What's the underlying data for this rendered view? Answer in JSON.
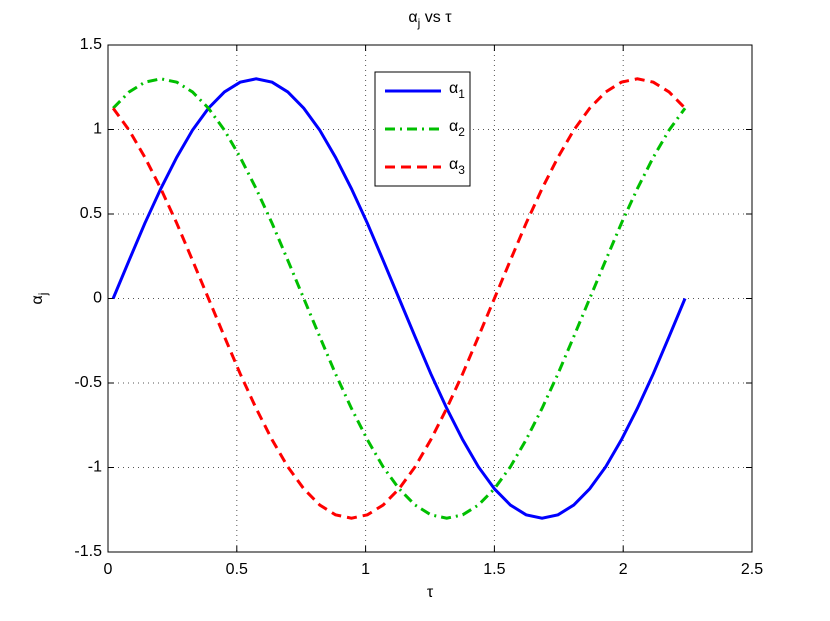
{
  "chart_data": {
    "type": "line",
    "title": "αj vs τ",
    "x_label": "τ",
    "y_label": "αj",
    "x": [
      0.02,
      0.082,
      0.143,
      0.205,
      0.267,
      0.328,
      0.39,
      0.452,
      0.513,
      0.575,
      0.637,
      0.698,
      0.76,
      0.822,
      0.883,
      0.945,
      1.007,
      1.068,
      1.13,
      1.192,
      1.253,
      1.315,
      1.377,
      1.438,
      1.5,
      1.562,
      1.623,
      1.685,
      1.747,
      1.808,
      1.87,
      1.932,
      1.993,
      2.055,
      2.117,
      2.178,
      2.24
    ],
    "series": [
      {
        "name": "α1",
        "color": "#0000ff",
        "dash": "solid",
        "values": [
          0,
          0.226,
          0.445,
          0.65,
          0.836,
          0.996,
          1.126,
          1.222,
          1.28,
          1.3,
          1.28,
          1.222,
          1.126,
          0.996,
          0.836,
          0.65,
          0.445,
          0.226,
          0,
          -0.226,
          -0.445,
          -0.65,
          -0.836,
          -0.996,
          -1.126,
          -1.222,
          -1.28,
          -1.3,
          -1.28,
          -1.222,
          -1.126,
          -0.996,
          -0.836,
          -0.65,
          -0.445,
          -0.226,
          0
        ]
      },
      {
        "name": "α2",
        "color": "#00bf00",
        "dash": "dashdot",
        "values": [
          1.126,
          1.222,
          1.28,
          1.3,
          1.28,
          1.222,
          1.126,
          0.996,
          0.836,
          0.65,
          0.445,
          0.226,
          0,
          -0.226,
          -0.445,
          -0.65,
          -0.836,
          -0.996,
          -1.126,
          -1.222,
          -1.28,
          -1.3,
          -1.28,
          -1.222,
          -1.126,
          -0.996,
          -0.836,
          -0.65,
          -0.445,
          -0.226,
          0,
          0.226,
          0.445,
          0.65,
          0.836,
          0.996,
          1.126
        ]
      },
      {
        "name": "α3",
        "color": "#ff0000",
        "dash": "dashed",
        "values": [
          1.126,
          0.996,
          0.836,
          0.65,
          0.445,
          0.226,
          0,
          -0.226,
          -0.445,
          -0.65,
          -0.836,
          -0.996,
          -1.126,
          -1.222,
          -1.28,
          -1.3,
          -1.28,
          -1.222,
          -1.126,
          -0.996,
          -0.836,
          -0.65,
          -0.445,
          -0.226,
          0,
          0.226,
          0.445,
          0.65,
          0.836,
          0.996,
          1.126,
          1.222,
          1.28,
          1.3,
          1.28,
          1.222,
          1.126
        ]
      }
    ],
    "xlim": [
      0,
      2.5
    ],
    "ylim": [
      -1.5,
      1.5
    ],
    "xticks": [
      0,
      0.5,
      1,
      1.5,
      2,
      2.5
    ],
    "yticks": [
      -1.5,
      -1,
      -0.5,
      0,
      0.5,
      1,
      1.5
    ],
    "grid": true,
    "legend": "top-center"
  }
}
